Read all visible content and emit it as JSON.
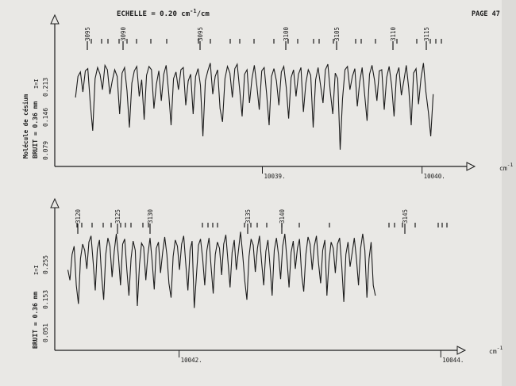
{
  "header": {
    "scale_prefix": "ECHELLE = 0.20 cm",
    "scale_exp": "-1",
    "scale_suffix": "/cm",
    "page_label": "PAGE 47"
  },
  "chart_data": [
    {
      "type": "line",
      "title": "",
      "molecule_label": "Molécule de césium",
      "ylabel": "BRUIT = 0.36 mm",
      "xlabel": "cm",
      "xlabel_exp": "-1",
      "xlim": [
        10037.7,
        10040.3
      ],
      "x_ticks": [
        {
          "value": 10039.0,
          "label": "10039."
        },
        {
          "value": 10040.0,
          "label": "10040."
        }
      ],
      "y_ticks": [
        "0.213",
        "0.146",
        "0.079"
      ],
      "y_tick_marker": "I=I",
      "line_numbers": [
        3095,
        3090,
        3095,
        3100,
        3105,
        3110,
        3115
      ],
      "series": [
        {
          "x_start": 10037.83,
          "x_end": 10040.07,
          "values": [
            0.55,
            0.74,
            0.78,
            0.6,
            0.79,
            0.81,
            0.5,
            0.25,
            0.72,
            0.82,
            0.76,
            0.62,
            0.84,
            0.8,
            0.58,
            0.7,
            0.8,
            0.74,
            0.4,
            0.77,
            0.82,
            0.61,
            0.28,
            0.68,
            0.79,
            0.83,
            0.56,
            0.71,
            0.35,
            0.75,
            0.83,
            0.8,
            0.45,
            0.67,
            0.79,
            0.52,
            0.76,
            0.84,
            0.6,
            0.3,
            0.72,
            0.78,
            0.62,
            0.8,
            0.82,
            0.48,
            0.7,
            0.76,
            0.4,
            0.74,
            0.81,
            0.66,
            0.2,
            0.7,
            0.79,
            0.86,
            0.58,
            0.74,
            0.8,
            0.45,
            0.33,
            0.72,
            0.83,
            0.77,
            0.55,
            0.81,
            0.85,
            0.62,
            0.38,
            0.76,
            0.8,
            0.5,
            0.72,
            0.84,
            0.66,
            0.44,
            0.79,
            0.82,
            0.58,
            0.3,
            0.74,
            0.81,
            0.7,
            0.48,
            0.78,
            0.83,
            0.64,
            0.36,
            0.73,
            0.8,
            0.56,
            0.76,
            0.82,
            0.42,
            0.68,
            0.8,
            0.75,
            0.28,
            0.71,
            0.82,
            0.66,
            0.5,
            0.8,
            0.85,
            0.6,
            0.4,
            0.77,
            0.72,
            0.08,
            0.54,
            0.8,
            0.83,
            0.62,
            0.74,
            0.81,
            0.47,
            0.69,
            0.82,
            0.58,
            0.34,
            0.76,
            0.84,
            0.71,
            0.52,
            0.79,
            0.8,
            0.44,
            0.73,
            0.83,
            0.66,
            0.38,
            0.75,
            0.82,
            0.57,
            0.7,
            0.84,
            0.63,
            0.3,
            0.77,
            0.81,
            0.49,
            0.72,
            0.86,
            0.6,
            0.42,
            0.2,
            0.58
          ]
        }
      ]
    },
    {
      "type": "line",
      "title": "",
      "molecule_label": "",
      "ylabel": "BRUIT = 0.36 mm",
      "xlabel": "cm",
      "xlabel_exp": "-1",
      "xlim": [
        10041.05,
        10044.15
      ],
      "x_ticks": [
        {
          "value": 10042.0,
          "label": "10042."
        },
        {
          "value": 10044.0,
          "label": "10044."
        }
      ],
      "y_ticks": [
        "0.255",
        "0.153",
        "0.051"
      ],
      "y_tick_marker": "I=I",
      "line_numbers": [
        3120,
        3125,
        3130,
        3135,
        3140,
        3145
      ],
      "series": [
        {
          "x_start": 10041.15,
          "x_end": 10043.5,
          "values": [
            0.55,
            0.45,
            0.7,
            0.78,
            0.4,
            0.22,
            0.66,
            0.8,
            0.74,
            0.56,
            0.82,
            0.88,
            0.63,
            0.35,
            0.75,
            0.84,
            0.5,
            0.26,
            0.7,
            0.86,
            0.78,
            0.48,
            0.73,
            0.9,
            0.68,
            0.4,
            0.8,
            0.85,
            0.55,
            0.3,
            0.66,
            0.83,
            0.74,
            0.2,
            0.6,
            0.81,
            0.77,
            0.45,
            0.7,
            0.86,
            0.64,
            0.36,
            0.76,
            0.82,
            0.52,
            0.72,
            0.87,
            0.7,
            0.42,
            0.28,
            0.68,
            0.84,
            0.78,
            0.55,
            0.8,
            0.88,
            0.6,
            0.35,
            0.74,
            0.83,
            0.18,
            0.48,
            0.79,
            0.85,
            0.66,
            0.4,
            0.74,
            0.86,
            0.58,
            0.32,
            0.7,
            0.82,
            0.76,
            0.5,
            0.8,
            0.89,
            0.64,
            0.38,
            0.72,
            0.84,
            0.55,
            0.74,
            0.92,
            0.7,
            0.44,
            0.26,
            0.68,
            0.85,
            0.79,
            0.53,
            0.76,
            0.88,
            0.62,
            0.4,
            0.73,
            0.84,
            0.58,
            0.3,
            0.74,
            0.86,
            0.7,
            0.46,
            0.78,
            0.9,
            0.66,
            0.38,
            0.72,
            0.83,
            0.56,
            0.76,
            0.85,
            0.5,
            0.34,
            0.7,
            0.87,
            0.8,
            0.55,
            0.78,
            0.88,
            0.62,
            0.42,
            0.74,
            0.84,
            0.3,
            0.64,
            0.82,
            0.76,
            0.52,
            0.8,
            0.86,
            0.6,
            0.24,
            0.7,
            0.82,
            0.58,
            0.72,
            0.86,
            0.66,
            0.4,
            0.76,
            0.9,
            0.74,
            0.28,
            0.66,
            0.82,
            0.4,
            0.3
          ]
        }
      ]
    }
  ]
}
